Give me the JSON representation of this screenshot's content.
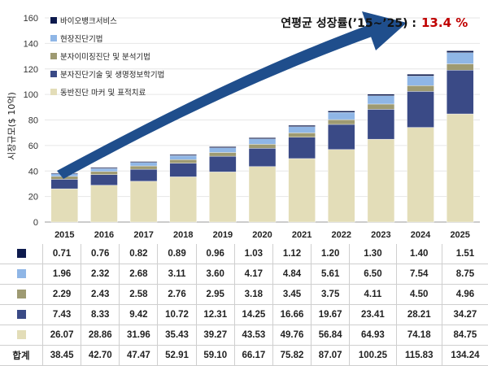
{
  "chart_data": {
    "type": "bar",
    "stacked": true,
    "categories": [
      "2015",
      "2016",
      "2017",
      "2018",
      "2019",
      "2020",
      "2021",
      "2022",
      "2023",
      "2024",
      "2025"
    ],
    "ylabel": "시장규모($ 10억)",
    "ylim": [
      0,
      160
    ],
    "yticks": [
      0,
      20,
      40,
      60,
      80,
      100,
      120,
      140,
      160
    ],
    "legend_position": "top-left",
    "series": [
      {
        "name": "동반진단 마커 및 표적치료",
        "color": "#e3ddb8",
        "values": [
          26.07,
          28.86,
          31.96,
          35.43,
          39.27,
          43.53,
          49.76,
          56.84,
          64.93,
          74.18,
          84.75
        ]
      },
      {
        "name": "분자진단기술 및 생명정보학기법",
        "color": "#3a4a86",
        "values": [
          7.43,
          8.33,
          9.42,
          10.72,
          12.31,
          14.25,
          16.66,
          19.67,
          23.41,
          28.21,
          34.27
        ]
      },
      {
        "name": "분자이미징진단 및 분석기법",
        "color": "#9e9a72",
        "values": [
          2.29,
          2.43,
          2.58,
          2.76,
          2.95,
          3.18,
          3.45,
          3.75,
          4.11,
          4.5,
          4.96
        ]
      },
      {
        "name": "현장진단기법",
        "color": "#8fb6e6",
        "values": [
          1.96,
          2.32,
          2.68,
          3.11,
          3.6,
          4.17,
          4.84,
          5.61,
          6.5,
          7.54,
          8.75
        ]
      },
      {
        "name": "바이오뱅크서비스",
        "color": "#0d1a4d",
        "values": [
          0.71,
          0.76,
          0.82,
          0.89,
          0.96,
          1.03,
          1.12,
          1.2,
          1.3,
          1.4,
          1.51
        ]
      }
    ],
    "total_label": "합계",
    "totals": [
      "38.45",
      "42.70",
      "47.47",
      "52.91",
      "59.10",
      "66.17",
      "75.82",
      "87.07",
      "100.25",
      "115.83",
      "134.24"
    ],
    "annotation": {
      "label": "연평균 성장률(’15~’25) :",
      "value": "13.4 %"
    }
  },
  "table_rows": [
    {
      "key_color": "#0d1a4d",
      "values": [
        "0.71",
        "0.76",
        "0.82",
        "0.89",
        "0.96",
        "1.03",
        "1.12",
        "1.20",
        "1.30",
        "1.40",
        "1.51"
      ]
    },
    {
      "key_color": "#8fb6e6",
      "values": [
        "1.96",
        "2.32",
        "2.68",
        "3.11",
        "3.60",
        "4.17",
        "4.84",
        "5.61",
        "6.50",
        "7.54",
        "8.75"
      ]
    },
    {
      "key_color": "#9e9a72",
      "values": [
        "2.29",
        "2.43",
        "2.58",
        "2.76",
        "2.95",
        "3.18",
        "3.45",
        "3.75",
        "4.11",
        "4.50",
        "4.96"
      ]
    },
    {
      "key_color": "#3a4a86",
      "values": [
        "7.43",
        "8.33",
        "9.42",
        "10.72",
        "12.31",
        "14.25",
        "16.66",
        "19.67",
        "23.41",
        "28.21",
        "34.27"
      ]
    },
    {
      "key_color": "#e3ddb8",
      "values": [
        "26.07",
        "28.86",
        "31.96",
        "35.43",
        "39.27",
        "43.53",
        "49.76",
        "56.84",
        "64.93",
        "74.18",
        "84.75"
      ]
    }
  ],
  "arrow_color": "#1f4e8c"
}
